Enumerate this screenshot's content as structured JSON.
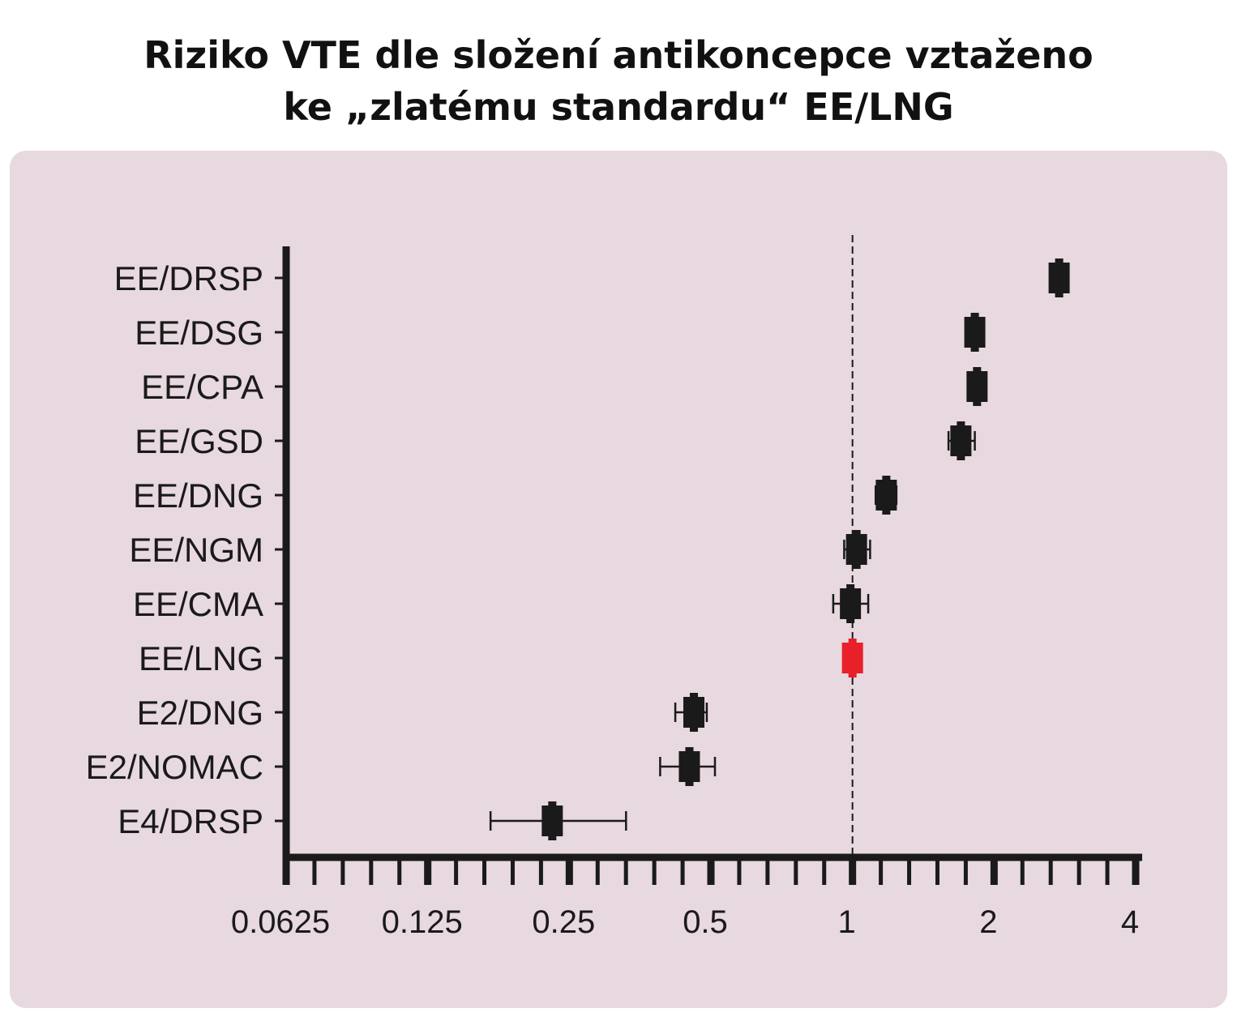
{
  "colors": {
    "panel_bg": "#e8d8e0",
    "ink": "#1a1a1a",
    "reference_marker": "#e8202a"
  },
  "chart_data": {
    "type": "forest-plot",
    "title_lines": [
      "Riziko VTE dle složení antikoncepce vztaženo",
      "ke „zlatému standardu“ EE/LNG"
    ],
    "xlabel": "",
    "ylabel": "",
    "x_scale": "log2",
    "xlim": [
      0.0625,
      4
    ],
    "x_ticks": [
      0.0625,
      0.125,
      0.25,
      0.5,
      1,
      2,
      4
    ],
    "x_tick_labels": [
      "0.0625",
      "0.125",
      "0.25",
      "0.5",
      "1",
      "2",
      "4"
    ],
    "reference_line": 1,
    "grid": false,
    "legend": "none",
    "rows": [
      {
        "label": "EE/DRSP",
        "estimate": 2.75,
        "ci": [
          2.7,
          2.8
        ],
        "reference": false
      },
      {
        "label": "EE/DSG",
        "estimate": 1.82,
        "ci": [
          1.78,
          1.86
        ],
        "reference": false
      },
      {
        "label": "EE/CPA",
        "estimate": 1.84,
        "ci": [
          1.8,
          1.88
        ],
        "reference": false
      },
      {
        "label": "EE/GSD",
        "estimate": 1.7,
        "ci": [
          1.6,
          1.82
        ],
        "reference": false
      },
      {
        "label": "EE/DNG",
        "estimate": 1.18,
        "ci": [
          1.12,
          1.24
        ],
        "reference": false
      },
      {
        "label": "EE/NGM",
        "estimate": 1.02,
        "ci": [
          0.96,
          1.09
        ],
        "reference": false
      },
      {
        "label": "EE/CMA",
        "estimate": 0.99,
        "ci": [
          0.91,
          1.08
        ],
        "reference": false
      },
      {
        "label": "EE/LNG",
        "estimate": 1.0,
        "ci": [
          1.0,
          1.0
        ],
        "reference": true
      },
      {
        "label": "E2/DNG",
        "estimate": 0.46,
        "ci": [
          0.42,
          0.49
        ],
        "reference": false
      },
      {
        "label": "E2/NOMAC",
        "estimate": 0.45,
        "ci": [
          0.39,
          0.51
        ],
        "reference": false
      },
      {
        "label": "E4/DRSP",
        "estimate": 0.23,
        "ci": [
          0.17,
          0.33
        ],
        "reference": false
      }
    ]
  }
}
